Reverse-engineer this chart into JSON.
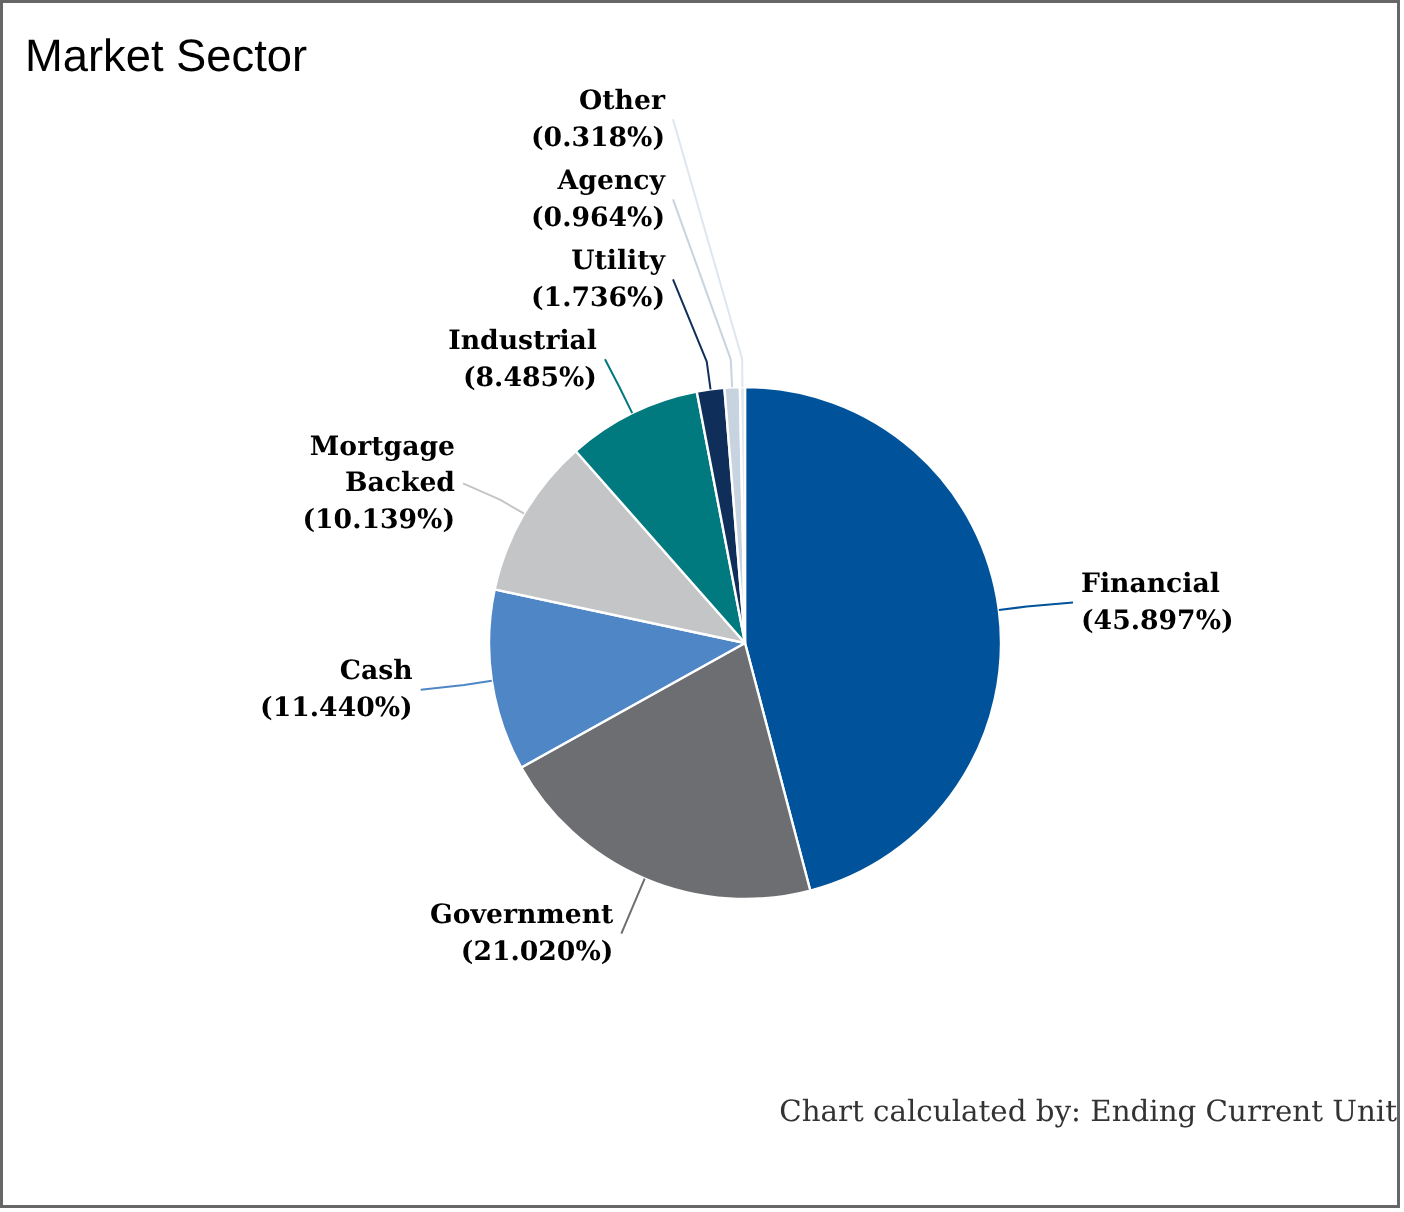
{
  "chart_data": {
    "type": "pie",
    "title": "Market Sector",
    "categories": [
      "Financial",
      "Government",
      "Cash",
      "Mortgage Backed",
      "Industrial",
      "Utility",
      "Agency",
      "Other"
    ],
    "values": [
      45.897,
      21.02,
      11.44,
      10.139,
      8.485,
      1.736,
      0.964,
      0.318
    ],
    "colors": [
      "#00539b",
      "#6d6e71",
      "#4f86c6",
      "#c4c5c7",
      "#00797f",
      "#0f2f5a",
      "#c8d3e0",
      "#dfe6ee"
    ],
    "value_labels": [
      "(45.897%)",
      "(21.020%)",
      "(11.440%)",
      "(10.139%)",
      "(8.485%)",
      "(1.736%)",
      "(0.964%)",
      "(0.318%)"
    ],
    "annotations": [
      "Chart calculated by: Ending Current Unit"
    ]
  }
}
